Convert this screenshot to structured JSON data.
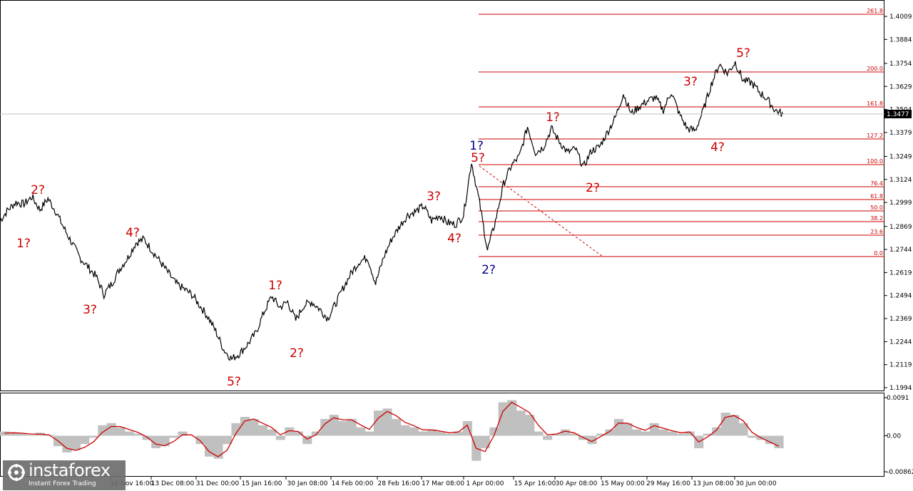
{
  "chart_data": [
    {
      "type": "line",
      "title": "",
      "ylim": [
        1.1994,
        1.4009
      ],
      "y_ticks": [
        1.4009,
        1.3884,
        1.3754,
        1.3629,
        1.3504,
        1.3379,
        1.3249,
        1.3124,
        1.2999,
        1.2869,
        1.2744,
        1.2619,
        1.2494,
        1.2369,
        1.2244,
        1.2119,
        1.1994
      ],
      "x_ticks": [
        "16 Nov 16:00",
        "13 Dec 08:00",
        "31 Dec 00:00",
        "15 Jan 16:00",
        "30 Jan 08:00",
        "14 Feb 00:00",
        "28 Feb 16:00",
        "17 Mar 08:00",
        "1 Apr 00:00",
        "15 Apr 16:00",
        "30 Apr 08:00",
        "15 May 00:00",
        "29 May 16:00",
        "13 Jun 08:00",
        "30 Jun 00:00"
      ],
      "current_price": "1.3477",
      "series": [
        {
          "values": [
            1.29,
            1.296,
            1.3,
            1.299,
            1.303,
            1.296,
            1.302,
            1.295,
            1.286,
            1.278,
            1.27,
            1.265,
            1.26,
            1.25,
            1.256,
            1.264,
            1.27,
            1.278,
            1.28,
            1.274,
            1.268,
            1.262,
            1.256,
            1.253,
            1.25,
            1.244,
            1.238,
            1.23,
            1.22,
            1.215,
            1.218,
            1.223,
            1.229,
            1.24,
            1.249,
            1.243,
            1.246,
            1.236,
            1.244,
            1.246,
            1.242,
            1.237,
            1.245,
            1.254,
            1.262,
            1.268,
            1.27,
            1.256,
            1.27,
            1.28,
            1.287,
            1.293,
            1.295,
            1.298,
            1.29,
            1.293,
            1.289,
            1.288,
            1.293,
            1.322,
            1.3,
            1.274,
            1.29,
            1.31,
            1.32,
            1.325,
            1.341,
            1.327,
            1.33,
            1.34,
            1.333,
            1.327,
            1.329,
            1.319,
            1.328,
            1.33,
            1.338,
            1.346,
            1.359,
            1.348,
            1.352,
            1.355,
            1.357,
            1.35,
            1.36,
            1.348,
            1.34,
            1.339,
            1.35,
            1.364,
            1.375,
            1.37,
            1.376,
            1.366,
            1.365,
            1.36,
            1.356,
            1.35,
            1.3477
          ]
        }
      ],
      "fibonacci_levels": [
        "261.8",
        "200.0",
        "161.8",
        "127.2",
        "100.0",
        "76.4",
        "61.8",
        "50.0",
        "38.2",
        "23.6",
        "0.0"
      ],
      "wave_labels": [
        {
          "text": "1?",
          "color": "#cc0000"
        },
        {
          "text": "2?",
          "color": "#cc0000"
        },
        {
          "text": "3?",
          "color": "#cc0000"
        },
        {
          "text": "4?",
          "color": "#cc0000"
        },
        {
          "text": "5?",
          "color": "#cc0000"
        },
        {
          "text": "1?",
          "color": "#cc0000"
        },
        {
          "text": "2?",
          "color": "#cc0000"
        },
        {
          "text": "3?",
          "color": "#cc0000"
        },
        {
          "text": "4?",
          "color": "#cc0000"
        },
        {
          "text": "5?",
          "color": "#cc0000"
        },
        {
          "text": "1?",
          "color": "#00008b"
        },
        {
          "text": "2?",
          "color": "#00008b"
        },
        {
          "text": "1?",
          "color": "#cc0000"
        },
        {
          "text": "2?",
          "color": "#cc0000"
        },
        {
          "text": "3?",
          "color": "#cc0000"
        },
        {
          "text": "4?",
          "color": "#cc0000"
        },
        {
          "text": "5?",
          "color": "#cc0000"
        }
      ]
    },
    {
      "type": "area",
      "ylim": [
        -0.00862,
        0.0091
      ],
      "y_ticks": [
        "0.0091",
        "0.00",
        "-0.00862"
      ],
      "series": [
        {
          "type": "area",
          "color": "#c0c0c0",
          "values": [
            0.001,
            0.0008,
            0.0005,
            0.0002,
            0.0007,
            0.0002,
            -0.0025,
            -0.004,
            -0.0035,
            -0.002,
            -0.0005,
            0.0025,
            0.003,
            0.002,
            0.001,
            0.0005,
            -0.001,
            -0.003,
            -0.0025,
            -0.0005,
            0.001,
            0.0,
            -0.002,
            -0.005,
            -0.0055,
            -0.002,
            0.003,
            0.0045,
            0.004,
            0.0025,
            0.0015,
            -0.001,
            0.002,
            0.001,
            -0.002,
            0.001,
            0.004,
            0.005,
            0.0035,
            0.004,
            0.002,
            0.001,
            0.006,
            0.0065,
            0.004,
            0.0025,
            0.002,
            0.001,
            0.0015,
            0.001,
            0.0005,
            0.001,
            0.0035,
            -0.006,
            -0.003,
            0.002,
            0.008,
            0.0085,
            0.006,
            0.005,
            0.001,
            -0.001,
            0.0005,
            0.0015,
            0.0005,
            -0.001,
            -0.002,
            0.0005,
            0.0015,
            0.004,
            0.003,
            0.0015,
            0.001,
            0.003,
            0.0015,
            0.001,
            0.0005,
            0.001,
            -0.003,
            0.0005,
            0.002,
            0.0055,
            0.005,
            0.003,
            -0.0005,
            -0.001,
            -0.002,
            -0.003
          ]
        },
        {
          "type": "line",
          "color": "#cc0000",
          "values": [
            0.0006,
            0.0007,
            0.0006,
            0.0004,
            0.0004,
            0.0002,
            -0.0012,
            -0.003,
            -0.0035,
            -0.0028,
            -0.0015,
            0.0008,
            0.0022,
            0.0022,
            0.0015,
            0.0008,
            -0.0003,
            -0.002,
            -0.0024,
            -0.0014,
            0.0002,
            0.0002,
            -0.0012,
            -0.0038,
            -0.005,
            -0.0035,
            0.0005,
            0.0035,
            0.004,
            0.003,
            0.002,
            0.0002,
            0.0012,
            0.001,
            -0.0008,
            0.0002,
            0.0028,
            0.0043,
            0.0038,
            0.0038,
            0.0026,
            0.0015,
            0.0042,
            0.0058,
            0.0048,
            0.0032,
            0.0024,
            0.0014,
            0.0014,
            0.0011,
            0.0007,
            0.0009,
            0.0025,
            -0.003,
            -0.0038,
            0.0,
            0.0058,
            0.008,
            0.0068,
            0.0055,
            0.0025,
            0.0002,
            0.0004,
            0.0011,
            0.0007,
            -0.0004,
            -0.0014,
            -0.0002,
            0.001,
            0.003,
            0.003,
            0.002,
            0.0013,
            0.0024,
            0.0018,
            0.0012,
            0.0007,
            0.0009,
            -0.0015,
            -0.0003,
            0.0013,
            0.0044,
            0.0048,
            0.0036,
            0.0008,
            -0.0005,
            -0.0015,
            -0.0025
          ]
        }
      ]
    }
  ],
  "watermark": {
    "brand": "instaforex",
    "tagline": "Instant Forex Trading"
  }
}
